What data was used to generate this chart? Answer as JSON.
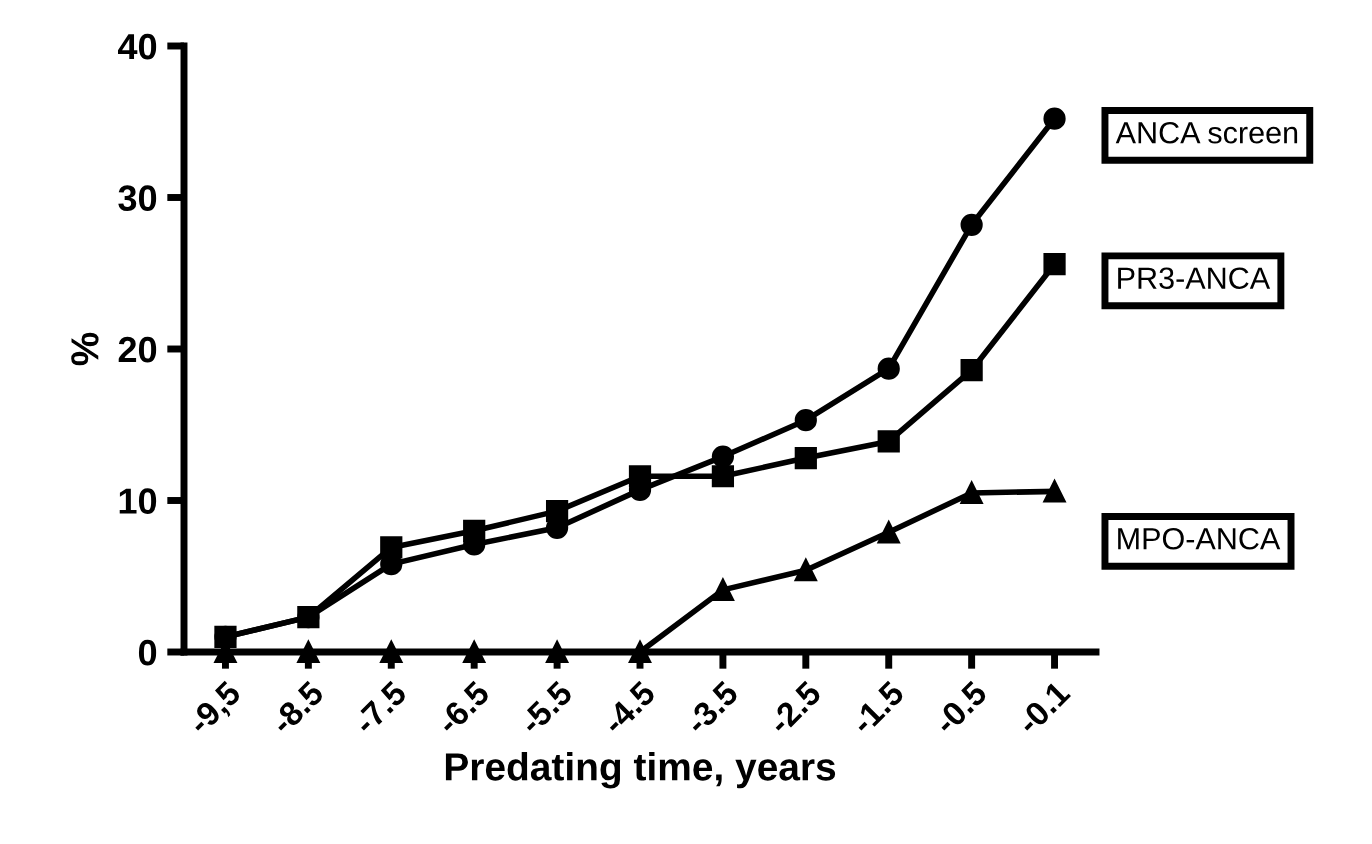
{
  "chart_data": {
    "type": "line",
    "xlabel": "Predating time, years",
    "ylabel": "%",
    "categories": [
      "-9,5",
      "-8.5",
      "-7.5",
      "-6.5",
      "-5.5",
      "-4.5",
      "-3.5",
      "-2.5",
      "-1.5",
      "-0.5",
      "-0.1"
    ],
    "series": [
      {
        "name": "ANCA screen",
        "color": "#000000",
        "marker": "circle",
        "values": [
          1.0,
          2.3,
          5.8,
          7.1,
          8.2,
          10.7,
          12.9,
          15.3,
          18.7,
          28.2,
          35.2
        ]
      },
      {
        "name": "PR3-ANCA",
        "color": "#000000",
        "marker": "square",
        "values": [
          1.0,
          2.3,
          6.9,
          8.0,
          9.3,
          11.6,
          11.6,
          12.8,
          13.9,
          18.6,
          25.6
        ]
      },
      {
        "name": "MPO-ANCA",
        "color": "#000000",
        "marker": "triangle",
        "values": [
          0,
          0,
          0,
          0,
          0,
          0,
          4.1,
          5.4,
          7.9,
          10.5,
          10.6
        ]
      }
    ],
    "ylim": [
      0,
      40
    ],
    "yticks": [
      0,
      10,
      20,
      30,
      40
    ],
    "grid": false,
    "legend": false,
    "line_style": "solid"
  }
}
